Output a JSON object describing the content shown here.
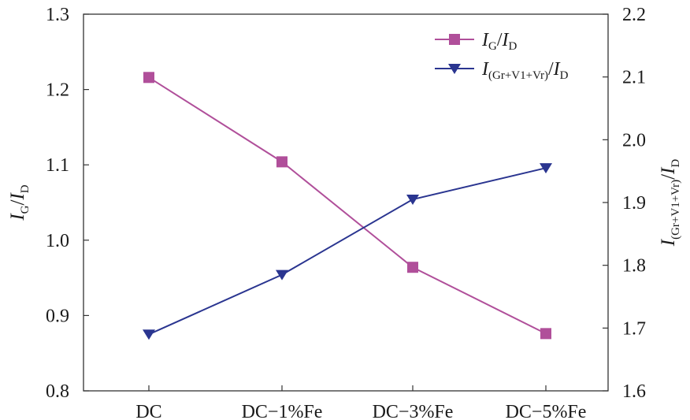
{
  "chart_data": {
    "type": "line",
    "categories": [
      "DC",
      "DC−1%Fe",
      "DC−3%Fe",
      "DC−5%Fe"
    ],
    "series": [
      {
        "name_main": "I",
        "name_sub": "G",
        "name_main2": "I",
        "name_sub2": "D",
        "axis": "left",
        "marker": "square",
        "color": "#b04f9a",
        "values": [
          1.216,
          1.104,
          0.964,
          0.876
        ]
      },
      {
        "name_main": "I",
        "name_sub": "(Gr+V1+Vr)",
        "name_main2": "I",
        "name_sub2": "D",
        "axis": "right",
        "marker": "triangle-down",
        "color": "#2a3590",
        "values": [
          1.69,
          1.785,
          1.905,
          1.955
        ]
      }
    ],
    "y_left": {
      "label_main": "I",
      "label_sub": "G",
      "label_main2": "I",
      "label_sub2": "D",
      "ylim": [
        0.8,
        1.3
      ],
      "ticks": [
        "0.8",
        "0.9",
        "1.0",
        "1.1",
        "1.2",
        "1.3"
      ]
    },
    "y_right": {
      "label_main": "I",
      "label_sub": "(Gr+V1+Vr)",
      "label_main2": "I",
      "label_sub2": "D",
      "ylim": [
        1.6,
        2.2
      ],
      "ticks": [
        "1.6",
        "1.7",
        "1.8",
        "1.9",
        "2.0",
        "2.1",
        "2.2"
      ]
    },
    "legend_position": "top-right",
    "grid": false
  }
}
